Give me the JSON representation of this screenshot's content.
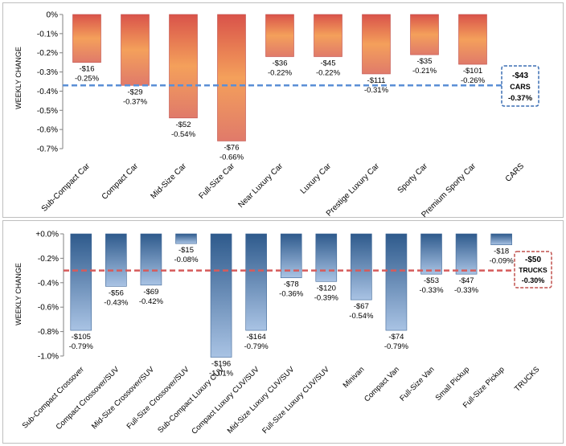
{
  "colors": {
    "cars_top": "#d9534a",
    "cars_mid": "#f4a05b",
    "cars_bottom": "#e07a6a",
    "trucks_top": "#2e5a8c",
    "trucks_bottom": "#a9c3e4",
    "cars_avg_line": "#5b8fd6",
    "trucks_avg_line": "#d65b5b",
    "panel_border": "#bfbfbf"
  },
  "chart_data": [
    {
      "id": "cars",
      "type": "bar",
      "ylabel": "WEEKLY CHANGE",
      "ylim": [
        -0.7,
        0
      ],
      "yticks": [
        0,
        -0.1,
        -0.2,
        -0.3,
        -0.4,
        -0.5,
        -0.6,
        -0.7
      ],
      "ytick_labels": [
        "0%",
        "-0.1%",
        "-0.2%",
        "-0.3%",
        "-0.4%",
        "-0.5%",
        "-0.6%",
        "-0.7%"
      ],
      "categories": [
        "Sub-Compact Car",
        "Compact Car",
        "Mid-Size Car",
        "Full-Size Car",
        "Near Luxury Car",
        "Luxury Car",
        "Prestige Luxury Car",
        "Sporty Car",
        "Premium Sporty Car",
        "CARS"
      ],
      "values": [
        -0.25,
        -0.37,
        -0.54,
        -0.66,
        -0.22,
        -0.22,
        -0.31,
        -0.21,
        -0.26,
        null
      ],
      "dollar_labels": [
        "-$16",
        "-$29",
        "-$52",
        "-$76",
        "-$36",
        "-$45",
        "-$111",
        "-$35",
        "-$101"
      ],
      "pct_labels": [
        "-0.25%",
        "-0.37%",
        "-0.54%",
        "-0.66%",
        "-0.22%",
        "-0.22%",
        "-0.31%",
        "-0.21%",
        "-0.26%"
      ],
      "average": -0.37,
      "summary": {
        "dollar": "-$43",
        "name": "CARS",
        "pct": "-0.37%"
      }
    },
    {
      "id": "trucks",
      "type": "bar",
      "ylabel": "WEEKLY CHANGE",
      "ylim": [
        -1.0,
        0
      ],
      "yticks": [
        0,
        -0.2,
        -0.4,
        -0.6,
        -0.8,
        -1.0
      ],
      "ytick_labels": [
        "+0.0%",
        "-0.2%",
        "-0.4%",
        "-0.6%",
        "-0.8%",
        "-1.0%"
      ],
      "categories": [
        "Sub-Compact Crossover",
        "Compact Crossover/SUV",
        "Mid-Size Crossover/SUV",
        "Full-Size Crossover/SUV",
        "Sub-Compact Luxury CUV",
        "Compact Luxury CUV/SUV",
        "Mid-Size Luxury CUV/SUV",
        "Full-Size Luxury CUV/SUV",
        "Minivan",
        "Compact Van",
        "Full-Size Van",
        "Small Pickup",
        "Full-Size Pickup",
        "TRUCKS"
      ],
      "values": [
        -0.79,
        -0.43,
        -0.42,
        -0.08,
        -1.01,
        -0.79,
        -0.36,
        -0.39,
        -0.54,
        -0.79,
        -0.33,
        -0.33,
        -0.09,
        null
      ],
      "dollar_labels": [
        "-$105",
        "-$56",
        "-$69",
        "-$15",
        "-$196",
        "-$164",
        "-$78",
        "-$120",
        "-$67",
        "-$74",
        "-$53",
        "-$47",
        "-$18"
      ],
      "pct_labels": [
        "-0.79%",
        "-0.43%",
        "-0.42%",
        "-0.08%",
        "-1.01%",
        "-0.79%",
        "-0.36%",
        "-0.39%",
        "-0.54%",
        "-0.79%",
        "-0.33%",
        "-0.33%",
        "-0.09%"
      ],
      "average": -0.3,
      "summary": {
        "dollar": "-$50",
        "name": "TRUCKS",
        "pct": "-0.30%"
      }
    }
  ]
}
